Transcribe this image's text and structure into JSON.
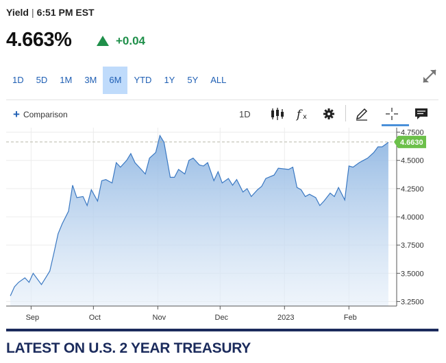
{
  "header": {
    "label": "Yield",
    "separator": "|",
    "time": "6:51 PM EST"
  },
  "quote": {
    "price": "4.663%",
    "change": "+0.04",
    "direction": "up",
    "up_color": "#1f8f4a"
  },
  "range_tabs": [
    {
      "label": "1D",
      "active": false
    },
    {
      "label": "5D",
      "active": false
    },
    {
      "label": "1M",
      "active": false
    },
    {
      "label": "3M",
      "active": false
    },
    {
      "label": "6M",
      "active": true
    },
    {
      "label": "YTD",
      "active": false
    },
    {
      "label": "1Y",
      "active": false
    },
    {
      "label": "5Y",
      "active": false
    },
    {
      "label": "ALL",
      "active": false
    }
  ],
  "toolbar": {
    "comparison_label": "Comparison",
    "interval_label": "1D",
    "tools": [
      "candlestick-icon",
      "fx-icon",
      "gear-icon",
      "pencil-icon",
      "crosshair-icon",
      "comment-icon"
    ]
  },
  "chart_data": {
    "type": "area",
    "x_tick_labels": [
      "Sep",
      "Oct",
      "Nov",
      "Dec",
      "2023",
      "Feb"
    ],
    "y_tick_labels": [
      "4.7500",
      "4.5000",
      "4.2500",
      "4.0000",
      "3.7500",
      "3.5000",
      "3.2500"
    ],
    "ylim": [
      3.21,
      4.79
    ],
    "last_value_label": "4.6630",
    "last_value": 4.663,
    "line_color": "#3a78c2",
    "badge_color": "#6cc04a",
    "grid": true,
    "series": [
      {
        "x": [
          "2022-08-22",
          "2022-08-24",
          "2022-08-26",
          "2022-08-29",
          "2022-08-31",
          "2022-09-02",
          "2022-09-06",
          "2022-09-08",
          "2022-09-10",
          "2022-09-12",
          "2022-09-14",
          "2022-09-16",
          "2022-09-19",
          "2022-09-21",
          "2022-09-23",
          "2022-09-26",
          "2022-09-28",
          "2022-09-30",
          "2022-10-03",
          "2022-10-05",
          "2022-10-07",
          "2022-10-10",
          "2022-10-12",
          "2022-10-14",
          "2022-10-17",
          "2022-10-19",
          "2022-10-21",
          "2022-10-24",
          "2022-10-26",
          "2022-10-28",
          "2022-10-31",
          "2022-11-02",
          "2022-11-04",
          "2022-11-07",
          "2022-11-09",
          "2022-11-11",
          "2022-11-14",
          "2022-11-16",
          "2022-11-18",
          "2022-11-21",
          "2022-11-23",
          "2022-11-25",
          "2022-11-28",
          "2022-11-30",
          "2022-12-02",
          "2022-12-05",
          "2022-12-07",
          "2022-12-09",
          "2022-12-12",
          "2022-12-14",
          "2022-12-16",
          "2022-12-19",
          "2022-12-21",
          "2022-12-23",
          "2022-12-27",
          "2022-12-29",
          "2023-01-03",
          "2023-01-05",
          "2023-01-07",
          "2023-01-09",
          "2023-01-11",
          "2023-01-13",
          "2023-01-16",
          "2023-01-18",
          "2023-01-20",
          "2023-01-23",
          "2023-01-25",
          "2023-01-27",
          "2023-01-30",
          "2023-02-01",
          "2023-02-03",
          "2023-02-06",
          "2023-02-08",
          "2023-02-10",
          "2023-02-13",
          "2023-02-15",
          "2023-02-17",
          "2023-02-20"
        ],
        "values": [
          3.3,
          3.38,
          3.42,
          3.46,
          3.42,
          3.5,
          3.4,
          3.46,
          3.52,
          3.68,
          3.85,
          3.94,
          4.05,
          4.28,
          4.17,
          4.18,
          4.1,
          4.24,
          4.14,
          4.32,
          4.33,
          4.3,
          4.48,
          4.44,
          4.5,
          4.56,
          4.48,
          4.42,
          4.38,
          4.52,
          4.57,
          4.72,
          4.66,
          4.35,
          4.35,
          4.42,
          4.38,
          4.5,
          4.52,
          4.46,
          4.45,
          4.48,
          4.32,
          4.4,
          4.3,
          4.34,
          4.28,
          4.33,
          4.22,
          4.25,
          4.18,
          4.24,
          4.27,
          4.34,
          4.37,
          4.43,
          4.42,
          4.44,
          4.26,
          4.24,
          4.18,
          4.2,
          4.17,
          4.1,
          4.14,
          4.21,
          4.18,
          4.26,
          4.15,
          4.45,
          4.44,
          4.48,
          4.5,
          4.52,
          4.57,
          4.62,
          4.62,
          4.66
        ]
      }
    ]
  },
  "section": {
    "title": "LATEST ON U.S. 2 YEAR TREASURY"
  }
}
